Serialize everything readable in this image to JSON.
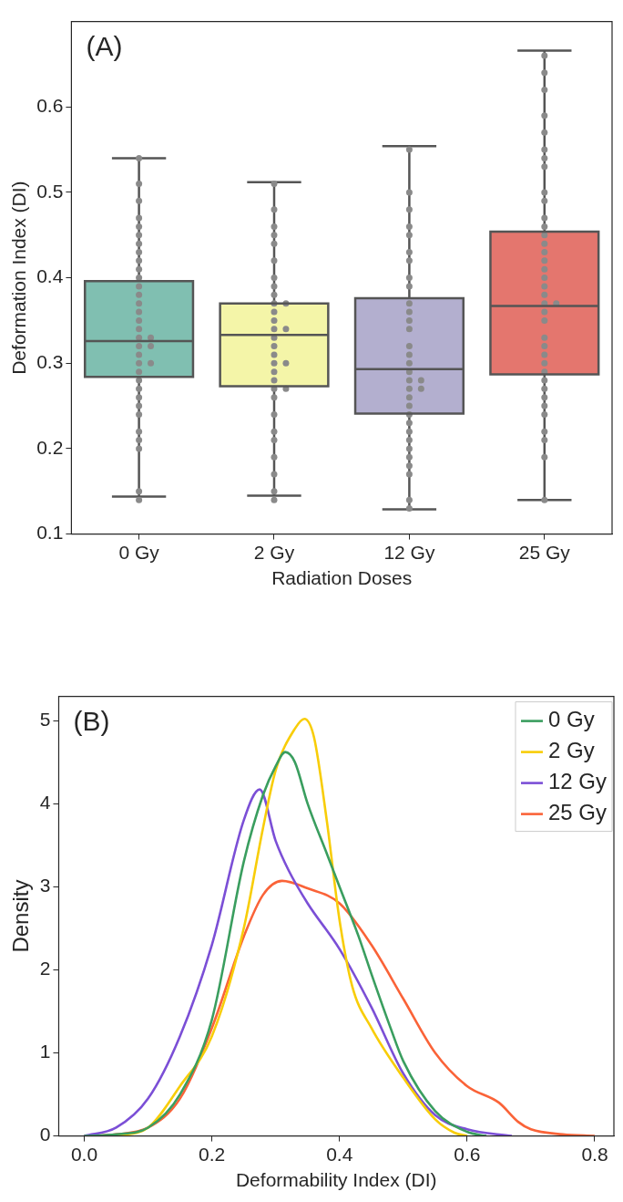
{
  "chart_data": [
    {
      "type": "box",
      "annotations": [
        "(A)"
      ],
      "xlabel": "Radiation Doses",
      "ylabel": "Deformation Index (DI)",
      "categories": [
        "0 Gy",
        "2 Gy",
        "12 Gy",
        "25 Gy"
      ],
      "colors": [
        "#80bfb1",
        "#f4f5a8",
        "#b3afcf",
        "#e4766e"
      ],
      "boxes": [
        {
          "low": 0.144,
          "q1": 0.284,
          "median": 0.326,
          "q3": 0.396,
          "high": 0.54
        },
        {
          "low": 0.145,
          "q1": 0.273,
          "median": 0.333,
          "q3": 0.37,
          "high": 0.512
        },
        {
          "low": 0.129,
          "q1": 0.241,
          "median": 0.293,
          "q3": 0.376,
          "high": 0.554
        },
        {
          "low": 0.14,
          "q1": 0.287,
          "median": 0.367,
          "q3": 0.454,
          "high": 0.666
        }
      ],
      "series": [
        {
          "type": "scatter",
          "color": "#8a8a8a",
          "x": [
            "0 Gy",
            "0 Gy",
            "0 Gy",
            "0 Gy",
            "0 Gy",
            "0 Gy",
            "0 Gy",
            "0 Gy",
            "0 Gy",
            "0 Gy",
            "0 Gy",
            "0 Gy",
            "0 Gy",
            "0 Gy",
            "0 Gy",
            "0 Gy",
            "0 Gy",
            "0 Gy",
            "0 Gy",
            "0 Gy",
            "0 Gy",
            "0 Gy",
            "0 Gy",
            "0 Gy",
            "0 Gy",
            "0 Gy",
            "0 Gy",
            "0 Gy",
            "0 Gy",
            "0 Gy",
            "0 Gy",
            "0 Gy",
            "0 Gy",
            "0 Gy",
            "0 Gy",
            "2 Gy",
            "2 Gy",
            "2 Gy",
            "2 Gy",
            "2 Gy",
            "2 Gy",
            "2 Gy",
            "2 Gy",
            "2 Gy",
            "2 Gy",
            "2 Gy",
            "2 Gy",
            "2 Gy",
            "2 Gy",
            "2 Gy",
            "2 Gy",
            "2 Gy",
            "2 Gy",
            "2 Gy",
            "2 Gy",
            "2 Gy",
            "2 Gy",
            "2 Gy",
            "2 Gy",
            "2 Gy",
            "2 Gy",
            "2 Gy",
            "2 Gy",
            "2 Gy",
            "2 Gy",
            "2 Gy",
            "2 Gy",
            "12 Gy",
            "12 Gy",
            "12 Gy",
            "12 Gy",
            "12 Gy",
            "12 Gy",
            "12 Gy",
            "12 Gy",
            "12 Gy",
            "12 Gy",
            "12 Gy",
            "12 Gy",
            "12 Gy",
            "12 Gy",
            "12 Gy",
            "12 Gy",
            "12 Gy",
            "12 Gy",
            "12 Gy",
            "12 Gy",
            "12 Gy",
            "12 Gy",
            "12 Gy",
            "12 Gy",
            "12 Gy",
            "12 Gy",
            "12 Gy",
            "12 Gy",
            "12 Gy",
            "12 Gy",
            "12 Gy",
            "12 Gy",
            "12 Gy",
            "25 Gy",
            "25 Gy",
            "25 Gy",
            "25 Gy",
            "25 Gy",
            "25 Gy",
            "25 Gy",
            "25 Gy",
            "25 Gy",
            "25 Gy",
            "25 Gy",
            "25 Gy",
            "25 Gy",
            "25 Gy",
            "25 Gy",
            "25 Gy",
            "25 Gy",
            "25 Gy",
            "25 Gy",
            "25 Gy",
            "25 Gy",
            "25 Gy",
            "25 Gy",
            "25 Gy",
            "25 Gy",
            "25 Gy",
            "25 Gy",
            "25 Gy",
            "25 Gy",
            "25 Gy",
            "25 Gy",
            "25 Gy",
            "25 Gy",
            "25 Gy",
            "25 Gy",
            "25 Gy",
            "25 Gy",
            "25 Gy"
          ],
          "values": [
            0.54,
            0.51,
            0.49,
            0.47,
            0.46,
            0.45,
            0.44,
            0.43,
            0.42,
            0.41,
            0.4,
            0.39,
            0.38,
            0.37,
            0.36,
            0.35,
            0.34,
            0.33,
            0.33,
            0.32,
            0.32,
            0.31,
            0.3,
            0.3,
            0.29,
            0.28,
            0.27,
            0.26,
            0.25,
            0.24,
            0.22,
            0.21,
            0.2,
            0.15,
            0.14,
            0.51,
            0.48,
            0.46,
            0.45,
            0.44,
            0.42,
            0.4,
            0.39,
            0.38,
            0.37,
            0.37,
            0.36,
            0.35,
            0.34,
            0.34,
            0.33,
            0.32,
            0.31,
            0.3,
            0.3,
            0.29,
            0.28,
            0.27,
            0.27,
            0.26,
            0.24,
            0.22,
            0.21,
            0.19,
            0.17,
            0.15,
            0.14,
            0.55,
            0.5,
            0.48,
            0.46,
            0.45,
            0.43,
            0.42,
            0.4,
            0.39,
            0.37,
            0.36,
            0.35,
            0.34,
            0.32,
            0.31,
            0.3,
            0.29,
            0.28,
            0.28,
            0.27,
            0.27,
            0.26,
            0.25,
            0.24,
            0.23,
            0.22,
            0.21,
            0.2,
            0.19,
            0.18,
            0.17,
            0.14,
            0.13,
            0.66,
            0.64,
            0.62,
            0.59,
            0.57,
            0.55,
            0.54,
            0.53,
            0.5,
            0.49,
            0.47,
            0.46,
            0.45,
            0.44,
            0.43,
            0.42,
            0.41,
            0.4,
            0.39,
            0.38,
            0.37,
            0.37,
            0.36,
            0.35,
            0.33,
            0.32,
            0.31,
            0.3,
            0.29,
            0.28,
            0.27,
            0.26,
            0.25,
            0.24,
            0.22,
            0.21,
            0.19,
            0.14
          ]
        }
      ],
      "ylim": [
        0.1,
        0.7
      ],
      "yticks": [
        0.1,
        0.2,
        0.3,
        0.4,
        0.5,
        0.6
      ],
      "grid": false,
      "marker": "circle"
    },
    {
      "type": "line",
      "annotations": [
        "(B)"
      ],
      "xlabel": "Deformability Index (DI)",
      "ylabel": "Density",
      "series": [
        {
          "name": "0 Gy",
          "color": "#3a9e5f",
          "x": [
            0,
            0.05,
            0.1,
            0.15,
            0.2,
            0.25,
            0.28,
            0.3,
            0.315,
            0.33,
            0.35,
            0.38,
            0.4,
            0.43,
            0.45,
            0.48,
            0.5,
            0.55,
            0.6,
            0.63
          ],
          "values": [
            0,
            0.02,
            0.1,
            0.5,
            1.4,
            3.3,
            4.1,
            4.45,
            4.62,
            4.5,
            4.0,
            3.4,
            3.0,
            2.4,
            1.95,
            1.3,
            0.9,
            0.3,
            0.05,
            0
          ]
        },
        {
          "name": "2 Gy",
          "color": "#f8cd08",
          "x": [
            0.05,
            0.1,
            0.15,
            0.2,
            0.25,
            0.28,
            0.3,
            0.33,
            0.345,
            0.36,
            0.38,
            0.4,
            0.42,
            0.45,
            0.5,
            0.55,
            0.58,
            0.6
          ],
          "values": [
            0,
            0.1,
            0.6,
            1.2,
            2.5,
            3.7,
            4.4,
            4.9,
            5.02,
            4.8,
            3.8,
            2.6,
            1.8,
            1.3,
            0.7,
            0.2,
            0.04,
            0
          ]
        },
        {
          "name": "12 Gy",
          "color": "#7b4fd6",
          "x": [
            0,
            0.05,
            0.1,
            0.15,
            0.2,
            0.25,
            0.275,
            0.3,
            0.32,
            0.35,
            0.4,
            0.45,
            0.5,
            0.55,
            0.6,
            0.67
          ],
          "values": [
            0,
            0.1,
            0.45,
            1.2,
            2.3,
            3.8,
            4.17,
            3.55,
            3.2,
            2.8,
            2.25,
            1.55,
            0.75,
            0.25,
            0.08,
            0
          ]
        },
        {
          "name": "25 Gy",
          "color": "#fa6338",
          "x": [
            0,
            0.05,
            0.1,
            0.15,
            0.2,
            0.25,
            0.28,
            0.31,
            0.35,
            0.4,
            0.45,
            0.5,
            0.55,
            0.6,
            0.65,
            0.68,
            0.7,
            0.75,
            0.8
          ],
          "values": [
            0,
            0.02,
            0.1,
            0.45,
            1.3,
            2.4,
            2.9,
            3.07,
            2.98,
            2.8,
            2.3,
            1.65,
            1.0,
            0.6,
            0.4,
            0.17,
            0.08,
            0.02,
            0
          ]
        }
      ],
      "xlim": [
        -0.04,
        0.83
      ],
      "xticks": [
        {
          "value": 0,
          "label": "0.0"
        },
        0.2,
        0.4,
        0.6,
        0.8
      ],
      "ylim": [
        0,
        5.29
      ],
      "yticks": [
        0,
        1,
        2,
        3,
        4,
        5
      ],
      "grid": false,
      "legend": "top right",
      "marker": "none",
      "line_style": "solid"
    }
  ]
}
